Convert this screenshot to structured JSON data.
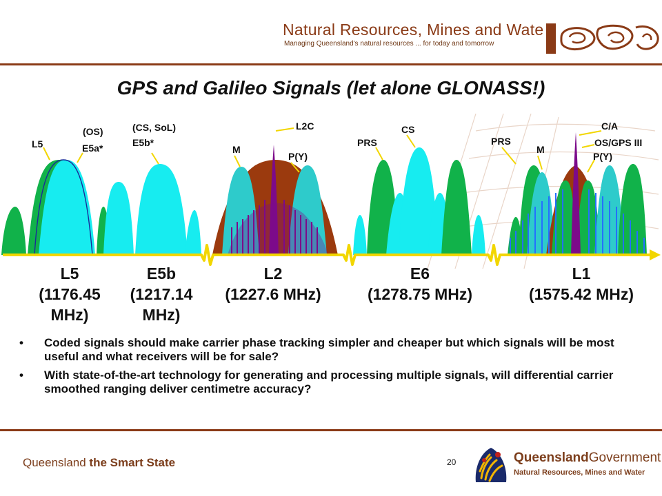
{
  "header": {
    "dept_title": "Natural Resources, Mines and Water",
    "dept_subtitle": "Managing Queensland's natural resources ... for today and tomorrow"
  },
  "slide": {
    "title": "GPS and Galileo Signals (let alone GLONASS!)"
  },
  "signal_labels": {
    "l5": "L5",
    "os": "(OS)",
    "e5a": "E5a*",
    "cs_sol": "(CS, SoL)",
    "e5b": "E5b*",
    "l2c": "L2C",
    "m_l2": "M",
    "py_l2": "P(Y)",
    "prs_e6": "PRS",
    "cs_e6": "CS",
    "ca": "C/A",
    "prs_l1": "PRS",
    "m_l1": "M",
    "os_gps3": "OS/GPS III",
    "py_l1": "P(Y)"
  },
  "bands": [
    {
      "name": "L5",
      "freq": "(1176.45",
      "freq2": "MHz)"
    },
    {
      "name": "E5b",
      "freq": "(1217.14",
      "freq2": "MHz)"
    },
    {
      "name": "L2",
      "freq": "(1227.6 MHz)"
    },
    {
      "name": "E6",
      "freq": "(1278.75 MHz)"
    },
    {
      "name": "L1",
      "freq": "(1575.42 MHz)"
    }
  ],
  "bullets": [
    "Coded signals should make carrier phase tracking simpler and cheaper but which signals will be most useful and what receivers will be for sale?",
    "With state-of-the-art technology for generating and processing multiple signals, will differential carrier smoothed ranging deliver centimetre accuracy?"
  ],
  "bullet_glyph": "•",
  "footer": {
    "state_prefix": "Queensland ",
    "state_suffix": "the Smart State",
    "page": "20",
    "gov_name_a": "Queensland",
    "gov_name_b": "Government",
    "gov_sub": "Natural Resources, Mines and Water"
  },
  "colors": {
    "brand_brown": "#8a3a16",
    "green_lobe": "#11b24a",
    "cyan_lobe": "#2ecbcb",
    "bright_cyan": "#17ecf0",
    "purple": "#7c0a8a",
    "rust": "#9b3a0e",
    "axis_yellow": "#f2d600",
    "blue_lines": "#2470ff"
  }
}
